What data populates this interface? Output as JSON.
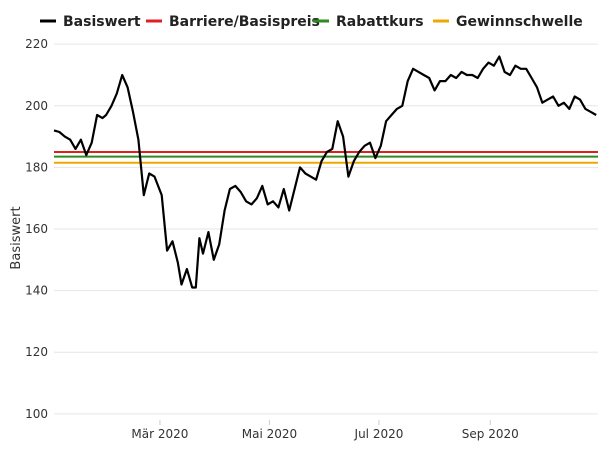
{
  "chart_data": {
    "type": "line",
    "title": "",
    "xlabel": "",
    "ylabel": "Basiswert",
    "ylim": [
      98,
      222
    ],
    "xlim": [
      "2020-01-02",
      "2020-10-31"
    ],
    "y_ticks": [
      100,
      120,
      140,
      160,
      180,
      200,
      220
    ],
    "x_ticks": [
      {
        "date": "2020-03-01",
        "label": "Mär 2020"
      },
      {
        "date": "2020-05-01",
        "label": "Mai 2020"
      },
      {
        "date": "2020-07-01",
        "label": "Jul 2020"
      },
      {
        "date": "2020-09-01",
        "label": "Sep 2020"
      }
    ],
    "grid": true,
    "legend_position": "top",
    "series": [
      {
        "name": "Basiswert",
        "color": "#000000",
        "x": [
          "2020-01-02",
          "2020-01-05",
          "2020-01-08",
          "2020-01-11",
          "2020-01-14",
          "2020-01-17",
          "2020-01-20",
          "2020-01-23",
          "2020-01-26",
          "2020-01-29",
          "2020-01-31",
          "2020-02-03",
          "2020-02-06",
          "2020-02-09",
          "2020-02-12",
          "2020-02-15",
          "2020-02-18",
          "2020-02-21",
          "2020-02-24",
          "2020-02-27",
          "2020-02-29",
          "2020-03-02",
          "2020-03-05",
          "2020-03-08",
          "2020-03-11",
          "2020-03-13",
          "2020-03-16",
          "2020-03-19",
          "2020-03-21",
          "2020-03-23",
          "2020-03-25",
          "2020-03-28",
          "2020-03-31",
          "2020-04-03",
          "2020-04-06",
          "2020-04-09",
          "2020-04-12",
          "2020-04-15",
          "2020-04-18",
          "2020-04-21",
          "2020-04-24",
          "2020-04-27",
          "2020-04-30",
          "2020-05-03",
          "2020-05-06",
          "2020-05-09",
          "2020-05-12",
          "2020-05-15",
          "2020-05-18",
          "2020-05-21",
          "2020-05-24",
          "2020-05-27",
          "2020-05-30",
          "2020-06-02",
          "2020-06-05",
          "2020-06-08",
          "2020-06-11",
          "2020-06-14",
          "2020-06-17",
          "2020-06-20",
          "2020-06-23",
          "2020-06-26",
          "2020-06-29",
          "2020-07-02",
          "2020-07-05",
          "2020-07-08",
          "2020-07-11",
          "2020-07-14",
          "2020-07-17",
          "2020-07-20",
          "2020-07-23",
          "2020-07-26",
          "2020-07-29",
          "2020-08-01",
          "2020-08-04",
          "2020-08-07",
          "2020-08-10",
          "2020-08-13",
          "2020-08-16",
          "2020-08-19",
          "2020-08-22",
          "2020-08-25",
          "2020-08-28",
          "2020-08-31",
          "2020-09-03",
          "2020-09-06",
          "2020-09-09",
          "2020-09-12",
          "2020-09-15",
          "2020-09-18",
          "2020-09-21",
          "2020-09-24",
          "2020-09-27",
          "2020-09-30",
          "2020-10-03",
          "2020-10-06",
          "2020-10-09",
          "2020-10-12",
          "2020-10-15",
          "2020-10-18",
          "2020-10-21",
          "2020-10-24",
          "2020-10-27",
          "2020-10-30"
        ],
        "y": [
          192,
          191.5,
          190,
          189,
          186,
          189,
          184,
          188,
          197,
          196,
          197,
          200,
          204,
          210,
          206,
          198,
          189,
          171,
          178,
          177,
          174,
          171,
          153,
          156,
          149,
          142,
          147,
          141,
          141,
          157,
          152,
          159,
          150,
          155,
          166,
          173,
          174,
          172,
          169,
          168,
          170,
          174,
          168,
          169,
          167,
          173,
          166,
          173,
          180,
          178,
          177,
          176,
          182,
          185,
          186,
          195,
          190,
          177,
          182,
          185,
          187,
          188,
          183,
          187,
          195,
          197,
          199,
          200,
          208,
          212,
          211,
          210,
          209,
          205,
          208,
          208,
          210,
          209,
          211,
          210,
          210,
          209,
          212,
          214,
          213,
          216,
          211,
          210,
          213,
          212,
          212,
          209,
          206,
          201,
          202,
          203,
          200,
          201,
          199,
          203,
          202,
          199,
          198,
          197
        ],
        "values": [
          192,
          191.5,
          190,
          189,
          186,
          189,
          184,
          188,
          197,
          196,
          197,
          200,
          204,
          210,
          206,
          198,
          189,
          171,
          178,
          177,
          174,
          171,
          153,
          156,
          149,
          142,
          147,
          141,
          141,
          157,
          152,
          159,
          150,
          155,
          166,
          173,
          174,
          172,
          169,
          168,
          170,
          174,
          168,
          169,
          167,
          173,
          166,
          173,
          180,
          178,
          177,
          176,
          182,
          185,
          186,
          195,
          190,
          177,
          182,
          185,
          187,
          188,
          183,
          187,
          195,
          197,
          199,
          200,
          208,
          212,
          211,
          210,
          209,
          205,
          208,
          208,
          210,
          209,
          211,
          210,
          210,
          209,
          212,
          214,
          213,
          216,
          211,
          210,
          213,
          212,
          212,
          209,
          206,
          201,
          202,
          203,
          200,
          201,
          199,
          203,
          202,
          199,
          198,
          197
        ]
      },
      {
        "name": "Barriere/Basispreis",
        "color": "#e02020",
        "x": [
          "2020-01-02",
          "2020-10-31"
        ],
        "y": [
          185,
          185
        ],
        "values": [
          185,
          185
        ]
      },
      {
        "name": "Rabattkurs",
        "color": "#2e8b1e",
        "x": [
          "2020-01-02",
          "2020-10-31"
        ],
        "y": [
          183.5,
          183.5
        ],
        "values": [
          183.5,
          183.5
        ]
      },
      {
        "name": "Gewinnschwelle",
        "color": "#f0a800",
        "x": [
          "2020-01-02",
          "2020-10-31"
        ],
        "y": [
          181.5,
          181.5
        ],
        "values": [
          181.5,
          181.5
        ]
      }
    ]
  }
}
